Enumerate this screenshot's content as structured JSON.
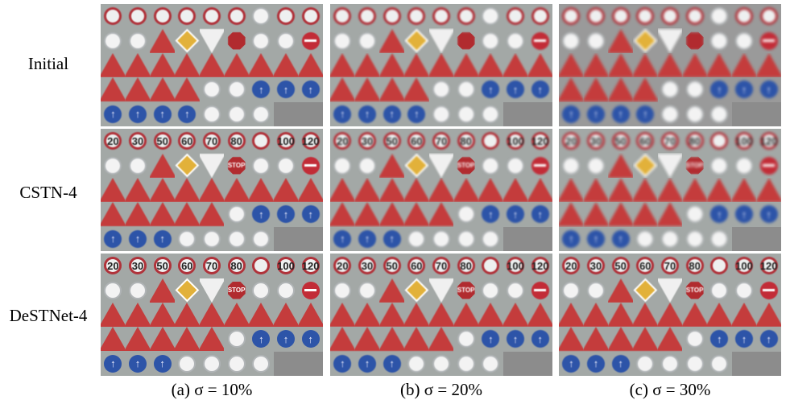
{
  "row_labels": [
    "Initial",
    "CSTN-4",
    "DeSTNet-4"
  ],
  "captions": [
    "(a) σ = 10%",
    "(b) σ = 20%",
    "(c) σ = 30%"
  ],
  "signs": [
    [
      "",
      "",
      "",
      "",
      "",
      "",
      "",
      "",
      ""
    ],
    [
      "",
      "",
      "",
      "",
      "",
      "STOP",
      "",
      "",
      ""
    ],
    [
      "",
      "",
      "",
      "",
      "",
      "",
      "",
      "",
      ""
    ],
    [
      "",
      "",
      "",
      "",
      "",
      "",
      "",
      "",
      ""
    ],
    [
      "",
      "",
      "",
      "",
      "",
      "",
      "",
      "",
      ""
    ]
  ],
  "speed_row": [
    "20",
    "30",
    "50",
    "60",
    "70",
    "80",
    "",
    "100",
    "120"
  ]
}
